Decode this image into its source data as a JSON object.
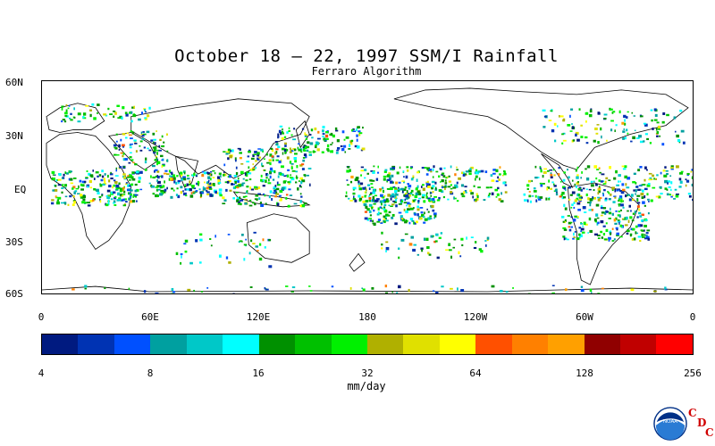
{
  "title": "October 18 – 22, 1997 SSM/I Rainfall",
  "subtitle": "Ferraro Algorithm",
  "y_labels": [
    "60N",
    "30N",
    "EQ",
    "30S",
    "60S"
  ],
  "x_labels": [
    "0",
    "60E",
    "120E",
    "180",
    "120W",
    "60W",
    "0"
  ],
  "colorbar": {
    "labels": [
      "4",
      "8",
      "16",
      "32",
      "64",
      "128",
      "256"
    ],
    "units": "mm/day",
    "colors": [
      "#001a80",
      "#0033b3",
      "#0050ff",
      "#00a0a0",
      "#00c8c8",
      "#00ffff",
      "#009000",
      "#00c000",
      "#00f000",
      "#b0b000",
      "#e0e000",
      "#ffff00",
      "#ff5000",
      "#ff8000",
      "#ffa000",
      "#900000",
      "#c00000",
      "#ff0000"
    ]
  },
  "logo": {
    "name": "noaa-logo",
    "text": "NOAA",
    "letters": [
      "C",
      "D",
      "C"
    ]
  }
}
